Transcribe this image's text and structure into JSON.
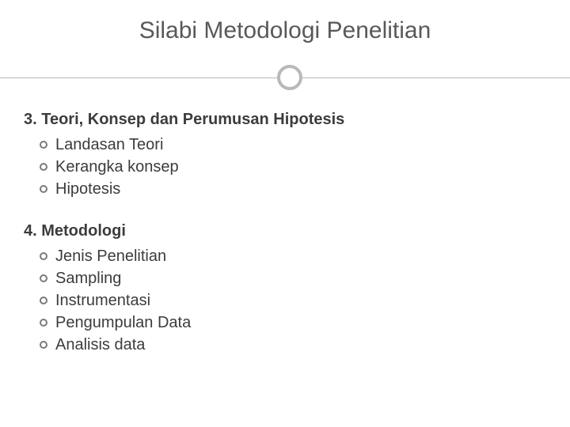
{
  "slide": {
    "title": "Silabi Metodologi Penelitian",
    "title_fontsize": 30,
    "title_color": "#595959",
    "background_color": "#ffffff",
    "divider_line_color": "#b9b9b9",
    "divider_circle_border_color": "#b9b9b9",
    "body_text_color": "#3c3c3c",
    "bullet_border_color": "#7a7a7a",
    "body_fontsize": 20,
    "heading_fontweight": 700
  },
  "sections": [
    {
      "heading": "3. Teori, Konsep dan Perumusan Hipotesis",
      "items": [
        "Landasan Teori",
        "Kerangka konsep",
        "Hipotesis"
      ]
    },
    {
      "heading": "4. Metodologi",
      "items": [
        "Jenis Penelitian",
        "Sampling",
        "Instrumentasi",
        "Pengumpulan Data",
        "Analisis data"
      ]
    }
  ]
}
